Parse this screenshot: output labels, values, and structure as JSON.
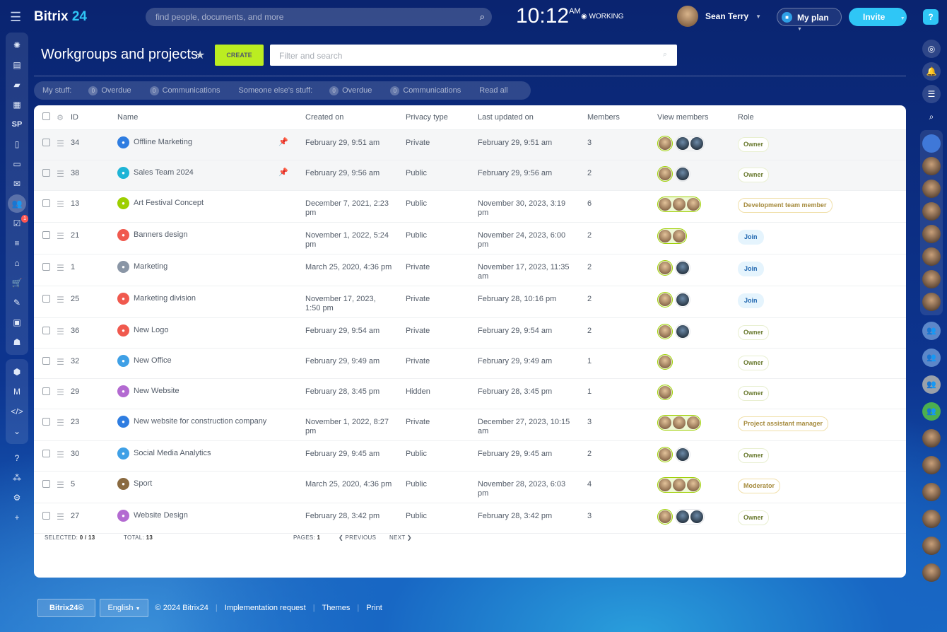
{
  "topbar": {
    "logo_main": "Bitrix",
    "logo_num": "24",
    "search_placeholder": "find people, documents, and more",
    "time": "10:12",
    "ampm": "AM",
    "status": "WORKING",
    "user_name": "Sean Terry",
    "my_plan": "My plan",
    "invite": "Invite",
    "help": "?"
  },
  "page": {
    "title": "Workgroups and projects",
    "create": "CREATE",
    "filter_placeholder": "Filter and search"
  },
  "counters": {
    "my_stuff": "My stuff:",
    "my_overdue_count": "0",
    "my_overdue": "Overdue",
    "my_comm_count": "0",
    "my_comm": "Communications",
    "else_stuff": "Someone else's stuff:",
    "else_overdue_count": "0",
    "else_overdue": "Overdue",
    "else_comm_count": "0",
    "else_comm": "Communications",
    "read_all": "Read all"
  },
  "left_sidebar": {
    "sp_label": "SP",
    "tasks_badge": "1"
  },
  "table": {
    "columns": {
      "id": "ID",
      "name": "Name",
      "created": "Created on",
      "privacy": "Privacy type",
      "updated": "Last updated on",
      "members": "Members",
      "view_members": "View members",
      "role": "Role"
    },
    "rows": [
      {
        "id": "34",
        "name": "Offline Marketing",
        "pinned": true,
        "icon_color": "#2f7de1",
        "created": "February 29, 9:51 am",
        "privacy": "Private",
        "updated": "February 29, 9:51 am",
        "members": "3",
        "hl": 1,
        "other": 2,
        "role": "Owner",
        "role_type": "owner"
      },
      {
        "id": "38",
        "name": "Sales Team 2024",
        "pinned": true,
        "icon_color": "#1eb4d6",
        "created": "February 29, 9:56 am",
        "privacy": "Public",
        "updated": "February 29, 9:56 am",
        "members": "2",
        "hl": 1,
        "other": 1,
        "role": "Owner",
        "role_type": "owner"
      },
      {
        "id": "13",
        "name": "Art Festival Concept",
        "pinned": false,
        "icon_color": "#9dcf00",
        "created": "December 7, 2021, 2:23 pm",
        "privacy": "Public",
        "updated": "November 30, 2023, 3:19 pm",
        "members": "6",
        "hl": 3,
        "other": 0,
        "role": "Development team member",
        "role_type": "other"
      },
      {
        "id": "21",
        "name": "Banners design",
        "pinned": false,
        "icon_color": "#f0594e",
        "created": "November 1, 2022, 5:24 pm",
        "privacy": "Public",
        "updated": "November 24, 2023, 6:00 pm",
        "members": "2",
        "hl": 2,
        "other": 0,
        "role": "Join",
        "role_type": "join"
      },
      {
        "id": "1",
        "name": "Marketing",
        "pinned": false,
        "icon_color": "#8a96a6",
        "created": "March 25, 2020, 4:36 pm",
        "privacy": "Private",
        "updated": "November 17, 2023, 11:35 am",
        "members": "2",
        "hl": 1,
        "other": 1,
        "role": "Join",
        "role_type": "join"
      },
      {
        "id": "25",
        "name": "Marketing division",
        "pinned": false,
        "icon_color": "#f0594e",
        "created": "November 17, 2023, 1:50 pm",
        "privacy": "Private",
        "updated": "February 28, 10:16 pm",
        "members": "2",
        "hl": 1,
        "other": 1,
        "role": "Join",
        "role_type": "join"
      },
      {
        "id": "36",
        "name": "New Logo",
        "pinned": false,
        "icon_color": "#f0594e",
        "created": "February 29, 9:54 am",
        "privacy": "Private",
        "updated": "February 29, 9:54 am",
        "members": "2",
        "hl": 1,
        "other": 1,
        "role": "Owner",
        "role_type": "owner"
      },
      {
        "id": "32",
        "name": "New Office",
        "pinned": false,
        "icon_color": "#3fa0e6",
        "created": "February 29, 9:49 am",
        "privacy": "Private",
        "updated": "February 29, 9:49 am",
        "members": "1",
        "hl": 1,
        "other": 0,
        "role": "Owner",
        "role_type": "owner"
      },
      {
        "id": "29",
        "name": "New Website",
        "pinned": false,
        "icon_color": "#b36ad1",
        "created": "February 28, 3:45 pm",
        "privacy": "Hidden",
        "updated": "February 28, 3:45 pm",
        "members": "1",
        "hl": 1,
        "other": 0,
        "role": "Owner",
        "role_type": "owner"
      },
      {
        "id": "23",
        "name": "New website for construction company",
        "pinned": false,
        "icon_color": "#2f7de1",
        "created": "November 1, 2022, 8:27 pm",
        "privacy": "Private",
        "updated": "December 27, 2023, 10:15 am",
        "members": "3",
        "hl": 3,
        "other": 0,
        "role": "Project assistant manager",
        "role_type": "other"
      },
      {
        "id": "30",
        "name": "Social Media Analytics",
        "pinned": false,
        "icon_color": "#3fa0e6",
        "created": "February 29, 9:45 am",
        "privacy": "Public",
        "updated": "February 29, 9:45 am",
        "members": "2",
        "hl": 1,
        "other": 1,
        "role": "Owner",
        "role_type": "owner"
      },
      {
        "id": "5",
        "name": "Sport",
        "pinned": false,
        "icon_color": "#8a6a40",
        "created": "March 25, 2020, 4:36 pm",
        "privacy": "Public",
        "updated": "November 28, 2023, 6:03 pm",
        "members": "4",
        "hl": 3,
        "other": 0,
        "role": "Moderator",
        "role_type": "other"
      },
      {
        "id": "27",
        "name": "Website Design",
        "pinned": false,
        "icon_color": "#b36ad1",
        "created": "February 28, 3:42 pm",
        "privacy": "Public",
        "updated": "February 28, 3:42 pm",
        "members": "3",
        "hl": 1,
        "other": 2,
        "role": "Owner",
        "role_type": "owner"
      }
    ]
  },
  "footer": {
    "selected_label": "SELECTED:",
    "selected": "0 / 13",
    "total_label": "TOTAL:",
    "total": "13",
    "pages_label": "PAGES:",
    "pages": "1",
    "previous": "PREVIOUS",
    "next": "NEXT"
  },
  "bottom": {
    "brand": "Bitrix24©",
    "language": "English",
    "copyright": "© 2024 Bitrix24",
    "impl": "Implementation request",
    "themes": "Themes",
    "print": "Print"
  }
}
